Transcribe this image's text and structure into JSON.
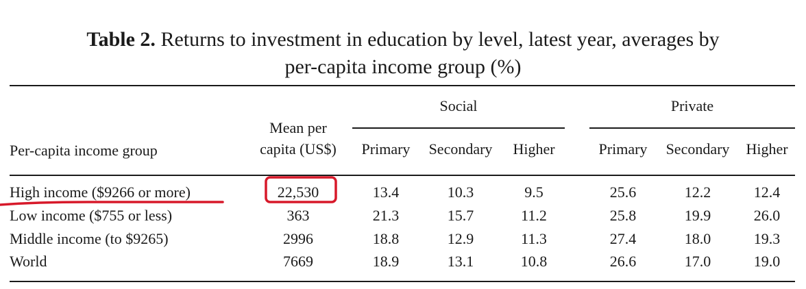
{
  "table": {
    "caption_label": "Table 2.",
    "caption_text": " Returns to investment in education by level, latest year, averages by",
    "caption_line2": "per-capita income group (%)",
    "header": {
      "group_col": "Per-capita income group",
      "mean_line1": "Mean per",
      "mean_line2": "capita (US$)",
      "social": "Social",
      "private": "Private",
      "sub": [
        "Primary",
        "Secondary",
        "Higher",
        "Primary",
        "Secondary",
        "Higher"
      ]
    },
    "rows": [
      {
        "group": "High income ($9266 or more)",
        "mean": "22,530",
        "values": [
          "13.4",
          "10.3",
          "9.5",
          "25.6",
          "12.2",
          "12.4"
        ]
      },
      {
        "group": "Low income ($755 or less)",
        "mean": "363",
        "values": [
          "21.3",
          "15.7",
          "11.2",
          "25.8",
          "19.9",
          "26.0"
        ]
      },
      {
        "group": "Middle income (to $9265)",
        "mean": "2996",
        "values": [
          "18.8",
          "12.9",
          "11.3",
          "27.4",
          "18.0",
          "19.3"
        ]
      },
      {
        "group": "World",
        "mean": "7669",
        "values": [
          "18.9",
          "13.1",
          "10.8",
          "26.6",
          "17.0",
          "19.0"
        ]
      }
    ]
  },
  "annotation": {
    "color": "#d7192a"
  }
}
